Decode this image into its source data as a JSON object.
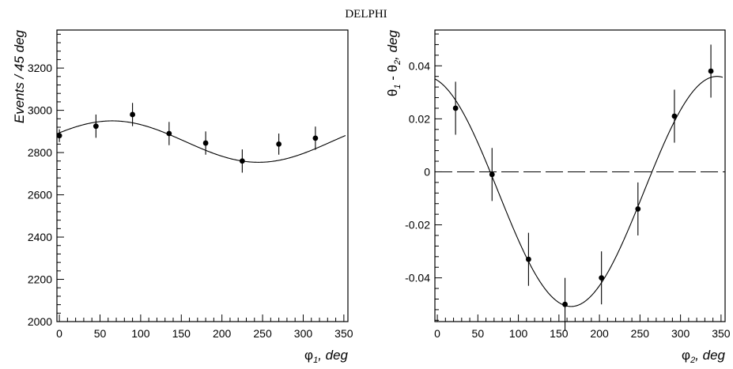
{
  "header": {
    "title": "DELPHI"
  },
  "chart_data": [
    {
      "type": "scatter",
      "title": "",
      "xlabel_symbol": "φ",
      "xlabel_sub": "1",
      "xlabel_rest": ", deg",
      "ylabel": "Events / 45 deg",
      "xlim": [
        -3,
        355
      ],
      "ylim": [
        2000,
        3380
      ],
      "xticks": [
        0,
        50,
        100,
        150,
        200,
        250,
        300,
        350
      ],
      "yticks": [
        2000,
        2200,
        2400,
        2600,
        2800,
        3000,
        3200
      ],
      "ytick_labels": [
        "2000",
        "2200",
        "2400",
        "2600",
        "2800",
        "3000",
        "3200"
      ],
      "minor_x_step": 10,
      "minor_y_step": 40,
      "points": [
        {
          "x": 0,
          "y": 2880,
          "err": 30
        },
        {
          "x": 45,
          "y": 2925,
          "err": 55
        },
        {
          "x": 90,
          "y": 2980,
          "err": 55
        },
        {
          "x": 135,
          "y": 2890,
          "err": 55
        },
        {
          "x": 180,
          "y": 2845,
          "err": 55
        },
        {
          "x": 225,
          "y": 2760,
          "err": 55
        },
        {
          "x": 270,
          "y": 2840,
          "err": 50
        },
        {
          "x": 315,
          "y": 2868,
          "err": 55
        }
      ],
      "fit_curve": {
        "form": "A + B*cos(x - phi0)",
        "A": 2852,
        "B": 98,
        "phi0_deg": 65,
        "x_range": [
          -3,
          352
        ]
      },
      "grid": false,
      "legend": "none"
    },
    {
      "type": "scatter",
      "title": "",
      "xlabel_symbol": "φ",
      "xlabel_sub": "2",
      "xlabel_rest": ", deg",
      "ylabel_parts": [
        "θ",
        "1",
        " - θ",
        "2",
        ", deg"
      ],
      "xlim": [
        -3,
        355
      ],
      "ylim": [
        -0.0565,
        0.0535
      ],
      "xticks": [
        0,
        50,
        100,
        150,
        200,
        250,
        300,
        350
      ],
      "yticks": [
        -0.04,
        -0.02,
        0,
        0.02,
        0.04
      ],
      "ytick_labels": [
        "-0.04",
        "-0.02",
        "0",
        "0.02",
        "0.04"
      ],
      "minor_x_step": 10,
      "minor_y_step": 0.004,
      "points": [
        {
          "x": 22.5,
          "y": 0.024,
          "err": 0.01
        },
        {
          "x": 67.5,
          "y": -0.001,
          "err": 0.01
        },
        {
          "x": 112.5,
          "y": -0.033,
          "err": 0.01
        },
        {
          "x": 157.5,
          "y": -0.05,
          "err": 0.01
        },
        {
          "x": 202.5,
          "y": -0.04,
          "err": 0.01
        },
        {
          "x": 247.5,
          "y": -0.014,
          "err": 0.01
        },
        {
          "x": 292.5,
          "y": 0.021,
          "err": 0.01
        },
        {
          "x": 337.5,
          "y": 0.038,
          "err": 0.01
        }
      ],
      "fit_curve": {
        "form": "A + B*cos(x - phi0)",
        "A": -0.0074,
        "B": 0.0434,
        "phi0_deg": 345,
        "x_range": [
          -3,
          352
        ]
      },
      "zero_line": true,
      "grid": false,
      "legend": "none"
    }
  ]
}
